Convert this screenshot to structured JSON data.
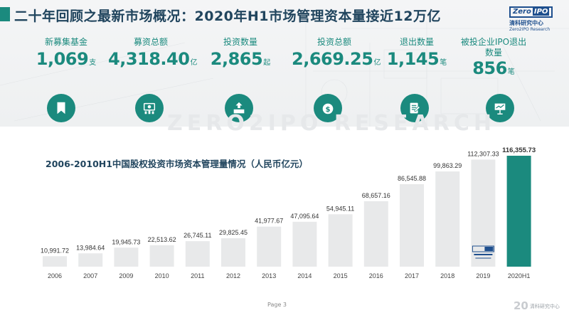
{
  "header": {
    "title": "二十年回顾之最新市场概况：2020年H1市场管理资本量接近12万亿"
  },
  "logo": {
    "brand_a": "Zero",
    "brand_b": "IPO",
    "name_cn": "清科研究中心",
    "name_en": "Zero2IPO Research"
  },
  "watermark": "ZERO2IPO RESEARCH",
  "kpis": [
    {
      "label": "新募集基金",
      "value": "1,069",
      "unit": "支",
      "icon": "bookmark-icon"
    },
    {
      "label": "募资总额",
      "value": "4,318.40",
      "unit": "亿",
      "icon": "money-bars-icon"
    },
    {
      "label": "投资数量",
      "value": "2,865",
      "unit": "起",
      "icon": "invest-growth-icon"
    },
    {
      "label": "投资总额",
      "value": "2,669.25",
      "unit": "亿",
      "icon": "money-bag-icon"
    },
    {
      "label": "退出数量",
      "value": "1,145",
      "unit": "笔",
      "icon": "document-edit-icon"
    },
    {
      "label": "被投企业IPO退出数量",
      "value": "856",
      "unit": "笔",
      "icon": "presentation-icon"
    }
  ],
  "colors": {
    "accent": "#1b8a7e",
    "bar": "#e8e9ea",
    "highlight_bar": "#1b8a7e",
    "title": "#21455e"
  },
  "chart_data": {
    "type": "bar",
    "title": "2006-2010H1中国股权投资市场资本管理量情况（人民币亿元）",
    "categories": [
      "2006",
      "2007",
      "2009",
      "2010",
      "2011",
      "2012",
      "2013",
      "2014",
      "2015",
      "2016",
      "2017",
      "2018",
      "2019",
      "2020H1"
    ],
    "values": [
      10991.72,
      13984.64,
      19945.73,
      22513.62,
      26745.11,
      29825.45,
      41977.67,
      47095.64,
      54945.11,
      68657.16,
      86545.88,
      99863.29,
      112307.33,
      116355.73
    ],
    "value_labels": [
      "10,991.72",
      "13,984.64",
      "19,945.73",
      "22,513.62",
      "26,745.11",
      "29,825.45",
      "41,977.67",
      "47,095.64",
      "54,945.11",
      "68,657.16",
      "86,545.88",
      "99,863.29",
      "112,307.33",
      "116,355.73"
    ],
    "highlight_index": 13,
    "grid": false,
    "yaxis_visible": false
  },
  "footer": {
    "page": "Page   3",
    "brand_num": "20",
    "brand_cn": "清科研究中心"
  }
}
